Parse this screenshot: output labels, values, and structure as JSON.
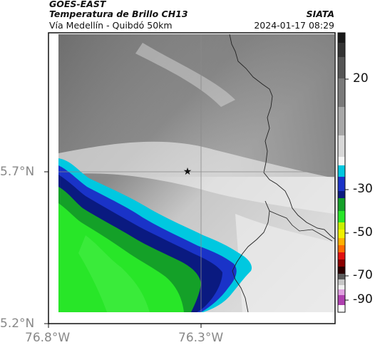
{
  "header": {
    "satellite": "GOES-EAST",
    "product": "Temperatura de Brillo CH13",
    "route": "Vía Medellín - Quibdó 50km",
    "org": "SIATA",
    "datetime": "2024-01-17 08:29"
  },
  "map": {
    "lat_ticks": [
      "5.7°N",
      "5.2°N"
    ],
    "lon_ticks": [
      "76.8°W",
      "76.3°W"
    ],
    "marker": "star-icon"
  },
  "colorbar": {
    "ticks": [
      "20",
      "-30",
      "-50",
      "-70",
      "-90"
    ],
    "colors": [
      "#1a1a1a",
      "#555555",
      "#9a9a9a",
      "#f2f2f2",
      "#00c8e0",
      "#1a33c8",
      "#14a028",
      "#28e628",
      "#f0f000",
      "#ff8c00",
      "#e01010",
      "#2a0000",
      "#c8c8c8",
      "#b040b0"
    ]
  }
}
